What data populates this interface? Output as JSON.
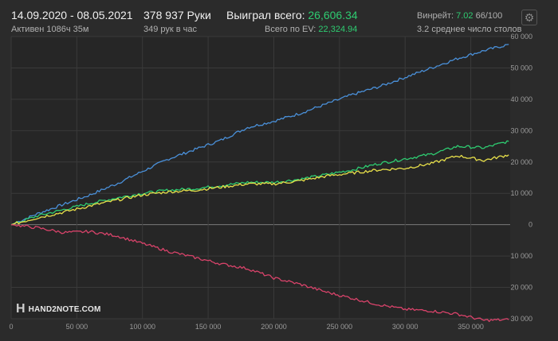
{
  "header": {
    "date_range": "14.09.2020 - 08.05.2021",
    "active_time": "Активен 1086ч 35м",
    "hands": "378 937 Руки",
    "hands_per_hour": "349 рук в час",
    "won_total_label": "Выиграл всего:",
    "won_total_value": "26,606.34",
    "ev_total_label": "Всего по EV:",
    "ev_total_value": "22,324.94",
    "winrate_label": "Винрейт:",
    "winrate_value": "7.02",
    "winrate_rest": "66/100",
    "avg_tables": "3.2 среднее число столов"
  },
  "logo": {
    "text": "HAND2NOTE.COM",
    "mark": "H"
  },
  "colors": {
    "background": "#2b2b2b",
    "plot_background": "#262626",
    "grid": "#3a3a3a",
    "zero_line": "#7a7a7a",
    "blue": "#4a90d9",
    "green": "#2ecc71",
    "yellow": "#e8e04a",
    "red": "#d8436a",
    "accent_green": "#2ecc71"
  },
  "chart_data": {
    "type": "line",
    "xlim": [
      0,
      380000
    ],
    "ylim": [
      -30000,
      60000
    ],
    "x_ticks": [
      0,
      50000,
      100000,
      150000,
      200000,
      250000,
      300000,
      350000
    ],
    "x_tick_labels": [
      "0",
      "50 000",
      "100 000",
      "150 000",
      "200 000",
      "250 000",
      "300 000",
      "350 000"
    ],
    "y_ticks": [
      -30000,
      -20000,
      -10000,
      0,
      10000,
      20000,
      30000,
      40000,
      50000,
      60000
    ],
    "y_tick_labels": [
      "30 000",
      "20 000",
      "10 000",
      "0",
      "10 000",
      "20 000",
      "30 000",
      "40 000",
      "50 000",
      "60 000"
    ],
    "grid": true,
    "x": [
      0,
      20000,
      40000,
      60000,
      80000,
      100000,
      120000,
      140000,
      160000,
      180000,
      200000,
      220000,
      240000,
      260000,
      280000,
      300000,
      320000,
      340000,
      360000,
      378937
    ],
    "series": [
      {
        "color": "blue",
        "values": [
          0,
          3500,
          6500,
          9500,
          13000,
          17000,
          21000,
          24000,
          27000,
          31000,
          33000,
          35500,
          38500,
          41500,
          44000,
          47000,
          50000,
          53000,
          55500,
          57500
        ]
      },
      {
        "color": "green",
        "values": [
          0,
          2800,
          4800,
          6800,
          8500,
          10000,
          11000,
          11500,
          12500,
          13500,
          13500,
          14500,
          16000,
          17500,
          19500,
          21000,
          22500,
          25000,
          24500,
          26600
        ]
      },
      {
        "color": "yellow",
        "values": [
          0,
          2200,
          4000,
          6000,
          7800,
          9500,
          10500,
          11000,
          12000,
          13000,
          13000,
          14000,
          15500,
          16500,
          17500,
          18000,
          19500,
          22000,
          20500,
          22300
        ]
      },
      {
        "color": "red",
        "values": [
          0,
          -1000,
          -2500,
          -2200,
          -3500,
          -6000,
          -8500,
          -10500,
          -12500,
          -14000,
          -17000,
          -19000,
          -21500,
          -23500,
          -25500,
          -27000,
          -27500,
          -28500,
          -30500,
          -30300
        ]
      }
    ]
  }
}
